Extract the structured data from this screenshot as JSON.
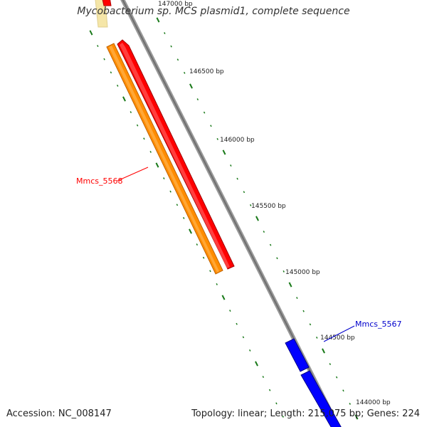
{
  "title": "Mycobacterium sp. MCS plasmid1, complete sequence",
  "footer": {
    "accession": "Accession: NC_008147",
    "summary": "Topology: linear; Length: 215,075 bp; Genes: 224"
  },
  "ticks": [
    "147000 bp",
    "146500 bp",
    "146000 bp",
    "145500 bp",
    "145000 bp",
    "144500 bp",
    "144000 bp"
  ],
  "genes": [
    {
      "label": "Mmcs_5568",
      "color": "#ff0000"
    },
    {
      "label": "Mmcs_5567",
      "color": "#0000cc"
    }
  ],
  "colors": {
    "backbone": "#888888",
    "tick_marks": "#1a7a1a",
    "orange_feature": "#ff8c00",
    "red_feature": "#ff0000",
    "blue_feature": "#0000ff",
    "yellow_feature": "#f5e6a8"
  }
}
